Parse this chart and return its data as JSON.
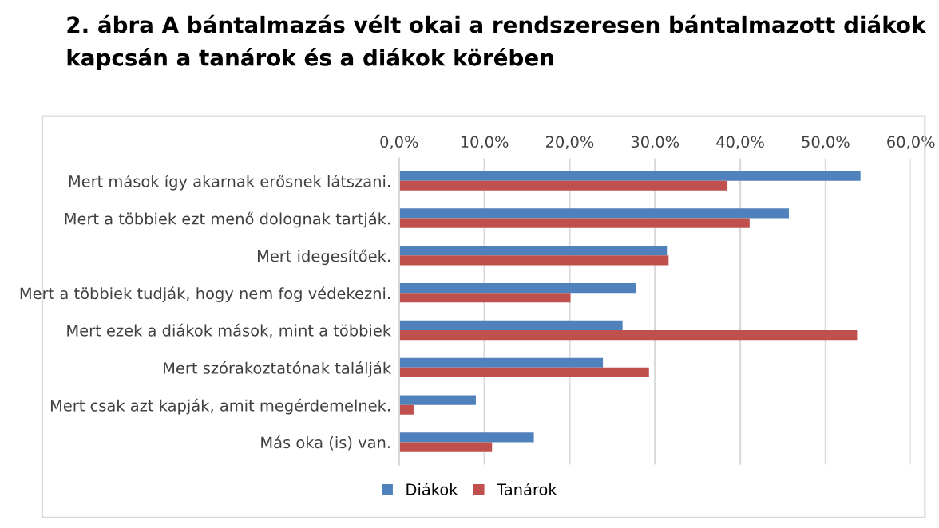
{
  "chart_data": {
    "type": "bar",
    "orientation": "horizontal",
    "title": "2. ábra A bántalmazás vélt okai a rendszeresen bántalmazott diákok\nkapcsán a tanárok és a diákok körében",
    "categories": [
      "Mert mások így akarnak erősnek látszani.",
      "Mert a többiek ezt menő dolognak tartják.",
      "Mert idegesítőek.",
      "Mert a többiek tudják, hogy nem fog védekezni.",
      "Mert ezek a diákok mások, mint a többiek",
      "Mert szórakoztatónak találják",
      "Mert csak azt kapják, amit megérdemelnek.",
      "Más oka (is) van."
    ],
    "series": [
      {
        "name": "Diákok",
        "color": "#4f81bd",
        "values": [
          54.1,
          45.7,
          31.4,
          27.8,
          26.2,
          23.9,
          9.0,
          15.8
        ]
      },
      {
        "name": "Tanárok",
        "color": "#c0504d",
        "values": [
          38.5,
          41.1,
          31.6,
          20.1,
          53.7,
          29.3,
          1.7,
          10.9
        ]
      }
    ],
    "xlim": [
      0,
      60
    ],
    "xticks": [
      {
        "value": 0,
        "label": "0,0%"
      },
      {
        "value": 10,
        "label": "10,0%"
      },
      {
        "value": 20,
        "label": "20,0%"
      },
      {
        "value": 30,
        "label": "30,0%"
      },
      {
        "value": 40,
        "label": "40,0%"
      },
      {
        "value": 50,
        "label": "50,0%"
      },
      {
        "value": 60,
        "label": "60,0%"
      }
    ],
    "grid": "x",
    "legend": "bottom"
  }
}
